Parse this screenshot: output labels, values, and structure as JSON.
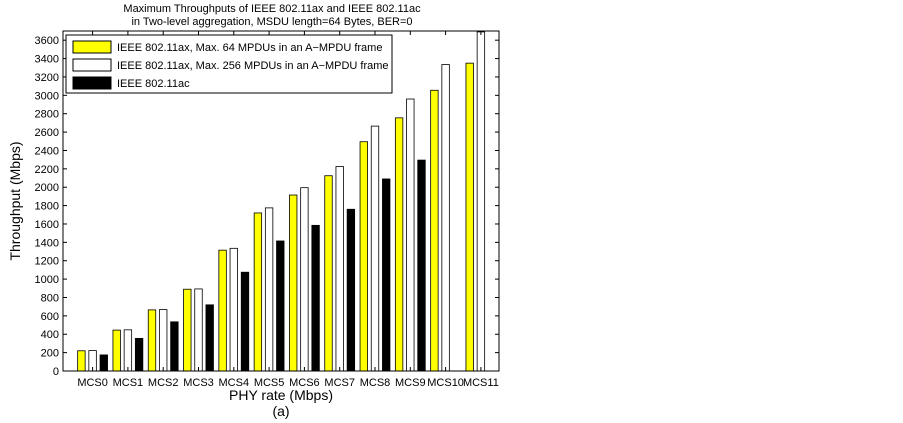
{
  "chart_data": {
    "type": "bar",
    "title": "Maximum Throughputs of IEEE 802.11ax and IEEE 802.11ac",
    "subtitle": "in Two-level aggregation, MSDU length=64 Bytes, BER=0",
    "xlabel": "PHY rate (Mbps)",
    "ylabel": "Throughput (Mbps)",
    "caption": "(a)",
    "ylim": [
      0,
      3700
    ],
    "yticks": [
      0,
      200,
      400,
      600,
      800,
      1000,
      1200,
      1400,
      1600,
      1800,
      2000,
      2200,
      2400,
      2600,
      2800,
      3000,
      3200,
      3400,
      3600
    ],
    "categories": [
      "MCS0",
      "MCS1",
      "MCS2",
      "MCS3",
      "MCS4",
      "MCS5",
      "MCS6",
      "MCS7",
      "MCS8",
      "MCS9",
      "MCS10",
      "MCS11"
    ],
    "legend_position": "top-left",
    "grid": false,
    "series": [
      {
        "name": "IEEE 802.11ax, Max. 64 MPDUs in an A−MPDU frame",
        "color": "#ffff00",
        "values": [
          220,
          445,
          665,
          890,
          1315,
          1720,
          1915,
          2125,
          2495,
          2755,
          3055,
          3350
        ]
      },
      {
        "name": "IEEE 802.11ax, Max. 256 MPDUs in an A−MPDU frame",
        "color": "#ffffff",
        "values": [
          222,
          448,
          668,
          893,
          1335,
          1775,
          1995,
          2225,
          2665,
          2960,
          3335,
          3690
        ]
      },
      {
        "name": "IEEE 802.11ac",
        "color": "#000000",
        "values": [
          175,
          355,
          535,
          720,
          1075,
          1415,
          1585,
          1760,
          2090,
          2295,
          null,
          null
        ]
      }
    ]
  }
}
